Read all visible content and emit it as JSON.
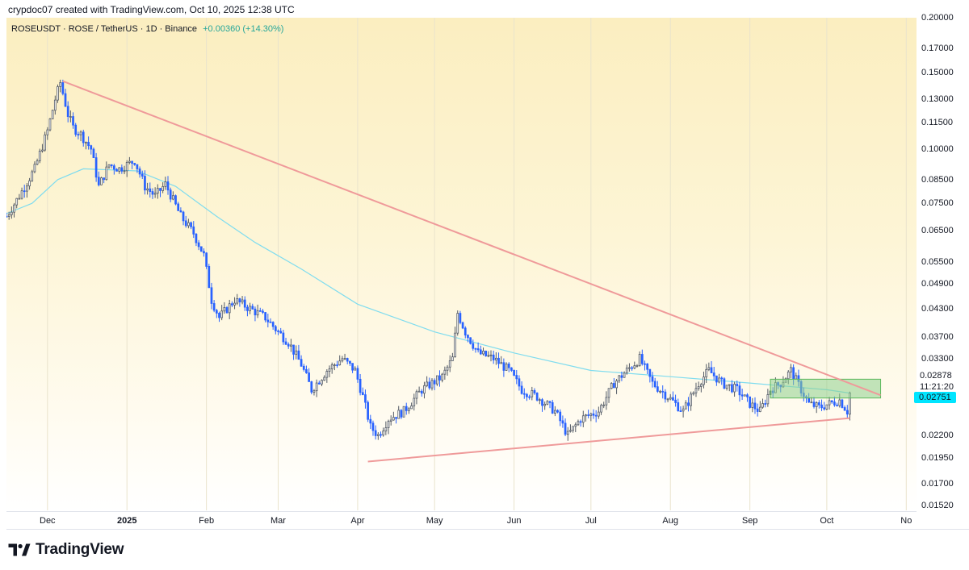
{
  "header": {
    "attribution": "crypdoc07 created with TradingView.com, Oct 10, 2025 12:38 UTC"
  },
  "legend": {
    "symbol": "ROSEUSDT · ROSE / TetherUS · 1D · Binance",
    "change": "+0.00360 (+14.30%)"
  },
  "brand": {
    "name": "TradingView",
    "logo_icon": "tradingview-logo-icon"
  },
  "colors": {
    "up": "#26a69a",
    "down": "#2962ff",
    "bullish_candle": "#2962ff",
    "ma_line": "#7fdcef",
    "trendline": "#ef9a9a",
    "zone_fill": "#8ed08e",
    "last_price_badge": "#00e5ff"
  },
  "chart_data": {
    "type": "candlestick",
    "title": "ROSEUSDT · ROSE / TetherUS · 1D · Binance",
    "scale": "log",
    "ylim": [
      0.0148,
      0.2
    ],
    "price_ticks": [
      "0.20000",
      "0.17000",
      "0.15000",
      "0.13000",
      "0.11500",
      "0.10000",
      "0.08500",
      "0.07500",
      "0.06500",
      "0.05500",
      "0.04900",
      "0.04300",
      "0.03700",
      "0.03300",
      "0.02200",
      "0.01950",
      "0.01700",
      "0.01520"
    ],
    "time_ticks": [
      {
        "label": "Dec",
        "date": "2024-12-01",
        "bold": false
      },
      {
        "label": "2025",
        "date": "2025-01-01",
        "bold": true
      },
      {
        "label": "Feb",
        "date": "2025-02-01",
        "bold": false
      },
      {
        "label": "Mar",
        "date": "2025-03-01",
        "bold": false
      },
      {
        "label": "Apr",
        "date": "2025-04-01",
        "bold": false
      },
      {
        "label": "May",
        "date": "2025-05-01",
        "bold": false
      },
      {
        "label": "Jun",
        "date": "2025-06-01",
        "bold": false
      },
      {
        "label": "Jul",
        "date": "2025-07-01",
        "bold": false
      },
      {
        "label": "Aug",
        "date": "2025-08-01",
        "bold": false
      },
      {
        "label": "Sep",
        "date": "2025-09-01",
        "bold": false
      },
      {
        "label": "Oct",
        "date": "2025-10-01",
        "bold": false
      },
      {
        "label": "No",
        "date": "2025-11-01",
        "bold": false
      }
    ],
    "x_range": [
      "2024-11-15",
      "2025-11-05"
    ],
    "last_price": {
      "label": "0.02751",
      "value": 0.02751
    },
    "countdown": "11:21:20",
    "zone_label": {
      "label": "0.02878",
      "value": 0.02878
    },
    "price_path": [
      [
        "2024-11-15",
        0.07
      ],
      [
        "2024-11-20",
        0.078
      ],
      [
        "2024-11-26",
        0.09
      ],
      [
        "2024-12-01",
        0.11
      ],
      [
        "2024-12-04",
        0.13
      ],
      [
        "2024-12-06",
        0.142
      ],
      [
        "2024-12-09",
        0.12
      ],
      [
        "2024-12-11",
        0.112
      ],
      [
        "2024-12-14",
        0.108
      ],
      [
        "2024-12-18",
        0.1
      ],
      [
        "2024-12-21",
        0.082
      ],
      [
        "2024-12-25",
        0.092
      ],
      [
        "2024-12-29",
        0.09
      ],
      [
        "2025-01-04",
        0.094
      ],
      [
        "2025-01-08",
        0.082
      ],
      [
        "2025-01-12",
        0.078
      ],
      [
        "2025-01-16",
        0.083
      ],
      [
        "2025-01-22",
        0.07
      ],
      [
        "2025-01-27",
        0.064
      ],
      [
        "2025-01-31",
        0.057
      ],
      [
        "2025-02-03",
        0.045
      ],
      [
        "2025-02-06",
        0.041
      ],
      [
        "2025-02-12",
        0.045
      ],
      [
        "2025-02-18",
        0.043
      ],
      [
        "2025-02-24",
        0.041
      ],
      [
        "2025-03-01",
        0.038
      ],
      [
        "2025-03-05",
        0.036
      ],
      [
        "2025-03-10",
        0.032
      ],
      [
        "2025-03-14",
        0.028
      ],
      [
        "2025-03-20",
        0.031
      ],
      [
        "2025-03-26",
        0.033
      ],
      [
        "2025-03-31",
        0.031
      ],
      [
        "2025-04-03",
        0.027
      ],
      [
        "2025-04-06",
        0.023
      ],
      [
        "2025-04-09",
        0.022
      ],
      [
        "2025-04-13",
        0.024
      ],
      [
        "2025-04-19",
        0.025
      ],
      [
        "2025-04-26",
        0.028
      ],
      [
        "2025-05-04",
        0.03
      ],
      [
        "2025-05-08",
        0.033
      ],
      [
        "2025-05-10",
        0.042
      ],
      [
        "2025-05-13",
        0.038
      ],
      [
        "2025-05-18",
        0.034
      ],
      [
        "2025-05-24",
        0.033
      ],
      [
        "2025-05-30",
        0.031
      ],
      [
        "2025-06-04",
        0.028
      ],
      [
        "2025-06-10",
        0.027
      ],
      [
        "2025-06-17",
        0.025
      ],
      [
        "2025-06-22",
        0.022
      ],
      [
        "2025-06-27",
        0.024
      ],
      [
        "2025-07-04",
        0.025
      ],
      [
        "2025-07-10",
        0.029
      ],
      [
        "2025-07-15",
        0.031
      ],
      [
        "2025-07-20",
        0.033
      ],
      [
        "2025-07-25",
        0.029
      ],
      [
        "2025-07-31",
        0.027
      ],
      [
        "2025-08-06",
        0.025
      ],
      [
        "2025-08-12",
        0.029
      ],
      [
        "2025-08-16",
        0.031
      ],
      [
        "2025-08-21",
        0.029
      ],
      [
        "2025-08-27",
        0.028
      ],
      [
        "2025-09-01",
        0.026
      ],
      [
        "2025-09-05",
        0.025
      ],
      [
        "2025-09-09",
        0.028
      ],
      [
        "2025-09-13",
        0.029
      ],
      [
        "2025-09-17",
        0.031
      ],
      [
        "2025-09-21",
        0.028
      ],
      [
        "2025-09-24",
        0.026
      ],
      [
        "2025-09-28",
        0.0255
      ],
      [
        "2025-10-02",
        0.026
      ],
      [
        "2025-10-06",
        0.0265
      ],
      [
        "2025-10-09",
        0.025
      ],
      [
        "2025-10-10",
        0.02751
      ]
    ],
    "ma_path": [
      [
        "2024-11-15",
        0.071
      ],
      [
        "2024-11-25",
        0.075
      ],
      [
        "2024-12-05",
        0.085
      ],
      [
        "2024-12-15",
        0.09
      ],
      [
        "2025-01-05",
        0.089
      ],
      [
        "2025-01-20",
        0.082
      ],
      [
        "2025-02-05",
        0.07
      ],
      [
        "2025-02-20",
        0.061
      ],
      [
        "2025-03-10",
        0.053
      ],
      [
        "2025-04-01",
        0.044
      ],
      [
        "2025-05-01",
        0.038
      ],
      [
        "2025-06-01",
        0.034
      ],
      [
        "2025-07-01",
        0.031
      ],
      [
        "2025-08-01",
        0.03
      ],
      [
        "2025-09-01",
        0.029
      ],
      [
        "2025-10-01",
        0.028
      ],
      [
        "2025-10-10",
        0.0275
      ]
    ],
    "trendlines": [
      {
        "name": "",
        "from": [
          "2024-12-07",
          0.143
        ],
        "to": [
          "2025-10-22",
          0.0272
        ]
      },
      {
        "name": "",
        "from": [
          "2025-04-05",
          0.01915
        ],
        "to": [
          "2025-10-10",
          0.0241
        ]
      }
    ],
    "zone": {
      "from": "2025-09-09",
      "to": "2025-10-22",
      "top": 0.0296,
      "bottom": 0.0268
    }
  }
}
